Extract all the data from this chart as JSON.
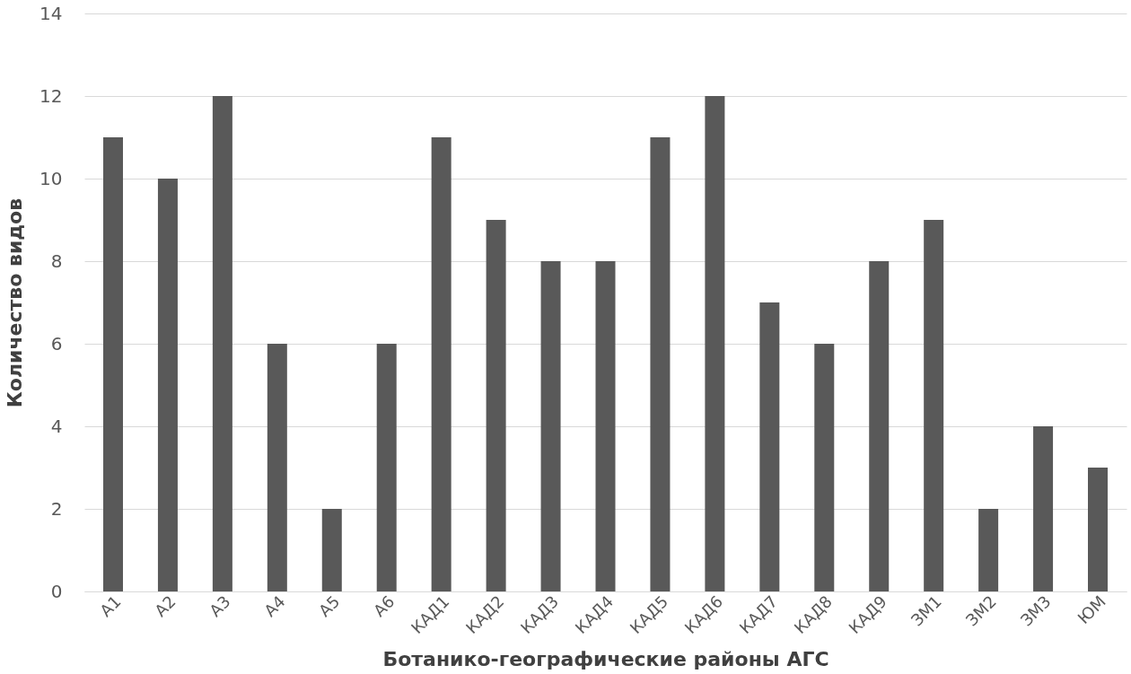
{
  "chart_data": {
    "type": "bar",
    "xlabel": "Ботанико-географические районы АГС",
    "ylabel": "Количество видов",
    "categories": [
      "А1",
      "А2",
      "А3",
      "А4",
      "А5",
      "А6",
      "КАД1",
      "КАД2",
      "КАД3",
      "КАД4",
      "КАД5",
      "КАД6",
      "КАД7",
      "КАД8",
      "КАД9",
      "ЗМ1",
      "ЗМ2",
      "ЗМ3",
      "ЮМ"
    ],
    "values": [
      11,
      10,
      12,
      6,
      2,
      6,
      11,
      9,
      8,
      8,
      11,
      12,
      7,
      6,
      8,
      9,
      2,
      4,
      3
    ],
    "color": "#595959",
    "ylim": [
      0,
      14
    ],
    "yticks": [
      0,
      2,
      4,
      6,
      8,
      10,
      12,
      14
    ],
    "grid": "y"
  }
}
